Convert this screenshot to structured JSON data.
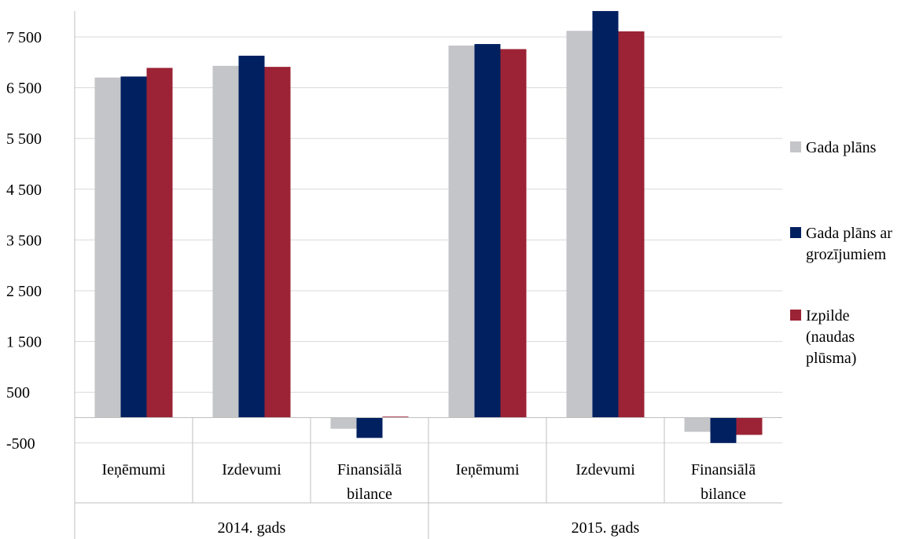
{
  "chart_data": {
    "type": "bar",
    "groups": [
      {
        "label": "2014. gads",
        "categories": [
          "Ieņēmumi",
          "Izdevumi",
          "Finansiālā bilance"
        ]
      },
      {
        "label": "2015. gads",
        "categories": [
          "Ieņēmumi",
          "Izdevumi",
          "Finansiālā bilance"
        ]
      }
    ],
    "categories": [
      "Ieņēmumi",
      "Izdevumi",
      "Finansiālā bilance",
      "Ieņēmumi",
      "Izdevumi",
      "Finansiālā bilance"
    ],
    "series": [
      {
        "name": "Gada plāns",
        "color": "#c4c5c9",
        "values": [
          6700,
          6930,
          -220,
          7330,
          7620,
          -280
        ]
      },
      {
        "name": "Gada plāns ar grozījumiem",
        "color": "#002060",
        "values": [
          6720,
          7130,
          -400,
          7360,
          8010,
          -500
        ]
      },
      {
        "name": "Izpilde (naudas plūsma)",
        "color": "#9b2335",
        "values": [
          6890,
          6910,
          20,
          7260,
          7610,
          -340
        ]
      }
    ],
    "legend_lines": [
      [
        "Gada plāns"
      ],
      [
        "Gada plāns ar",
        "grozījumiem"
      ],
      [
        "Izpilde",
        "(naudas",
        "plūsma)"
      ]
    ],
    "yticks": [
      -500,
      500,
      1500,
      2500,
      3500,
      4500,
      5500,
      6500,
      7500
    ],
    "ytick_labels": [
      "-500",
      "500",
      "1 500",
      "2 500",
      "3 500",
      "4 500",
      "5 500",
      "6 500",
      "7 500"
    ],
    "category_lines": [
      [
        "Ieņēmumi"
      ],
      [
        "Izdevumi"
      ],
      [
        "Finansiālā",
        "bilance"
      ],
      [
        "Ieņēmumi"
      ],
      [
        "Izdevumi"
      ],
      [
        "Finansiālā",
        "bilance"
      ]
    ],
    "ylim": [
      -500,
      8000
    ],
    "grid": true,
    "legend_position": "right"
  }
}
